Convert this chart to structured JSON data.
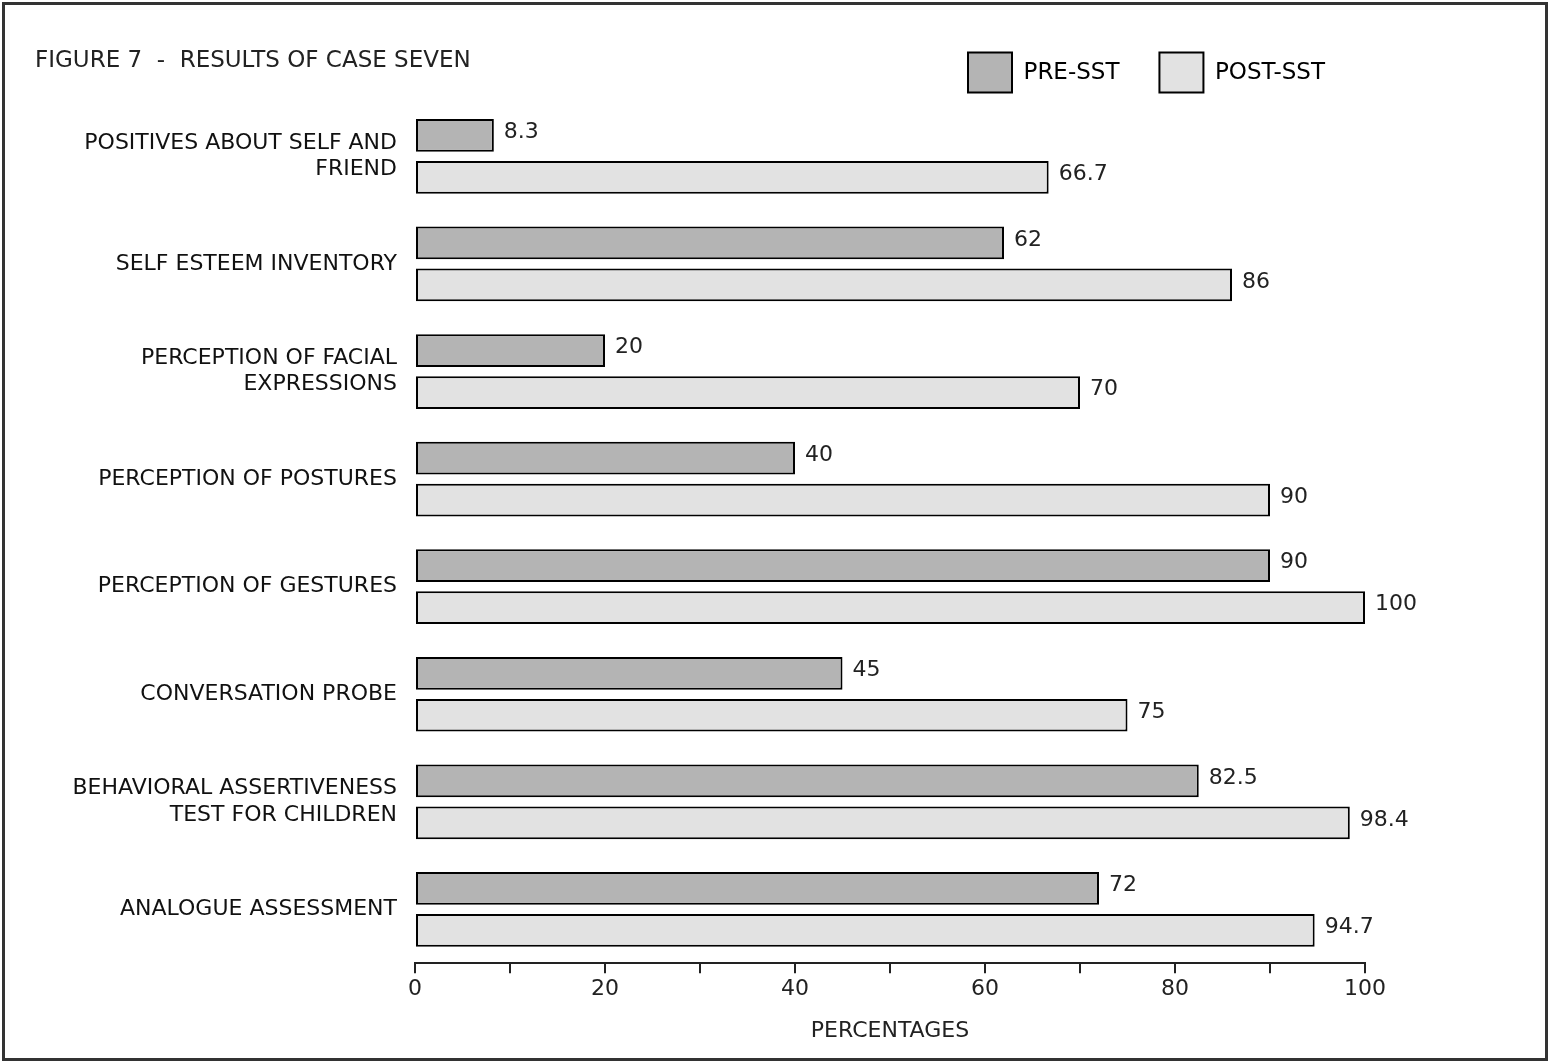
{
  "chart_data": {
    "type": "bar",
    "orientation": "horizontal",
    "title": "FIGURE 7  -  RESULTS OF CASE SEVEN",
    "xlabel": "PERCENTAGES",
    "categories": [
      "POSITIVES ABOUT SELF AND FRIEND",
      "SELF ESTEEM INVENTORY",
      "PERCEPTION OF FACIAL EXPRESSIONS",
      "PERCEPTION OF POSTURES",
      "PERCEPTION OF GESTURES",
      "CONVERSATION PROBE",
      "BEHAVIORAL ASSERTIVENESS TEST FOR CHILDREN",
      "ANALOGUE ASSESSMENT"
    ],
    "series": [
      {
        "name": "PRE-SST",
        "color": "#b4b4b4",
        "values": [
          8.3,
          62,
          20,
          40,
          90,
          45,
          82.5,
          72
        ]
      },
      {
        "name": "POST-SST",
        "color": "#e2e2e2",
        "values": [
          66.7,
          86,
          70,
          90,
          100,
          75,
          98.4,
          94.7
        ]
      }
    ],
    "xlim": [
      0,
      100
    ],
    "xticks": [
      0,
      {
        "value": 10,
        "label": null
      },
      20,
      {
        "value": 30,
        "label": null
      },
      40,
      {
        "value": 50,
        "label": null
      },
      60,
      {
        "value": 70,
        "label": null
      },
      80,
      {
        "value": 90,
        "label": null
      },
      100
    ],
    "data_labels": true,
    "grid": false,
    "legend": "top right"
  }
}
